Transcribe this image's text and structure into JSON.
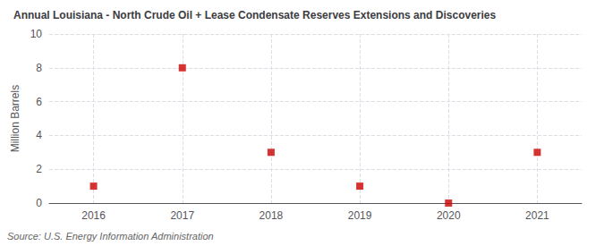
{
  "chart_data": {
    "type": "scatter",
    "title": "Annual Louisiana - North Crude Oil + Lease Condensate Reserves Extensions and Discoveries",
    "ylabel": "Million Barrels",
    "source": "Source: U.S. Energy Information Administration",
    "x": [
      2016,
      2017,
      2018,
      2019,
      2020,
      2021
    ],
    "values": [
      1.0,
      8.0,
      3.0,
      1.0,
      0.0,
      3.0
    ],
    "color": "#cc0000",
    "marker": "square",
    "xlim": [
      2015.5,
      2021.5
    ],
    "xticks": [
      2016,
      2017,
      2018,
      2019,
      2020,
      2021
    ],
    "ylim": [
      0,
      10
    ],
    "yticks": [
      0,
      2,
      4,
      6,
      8,
      10
    ],
    "grid": true
  }
}
